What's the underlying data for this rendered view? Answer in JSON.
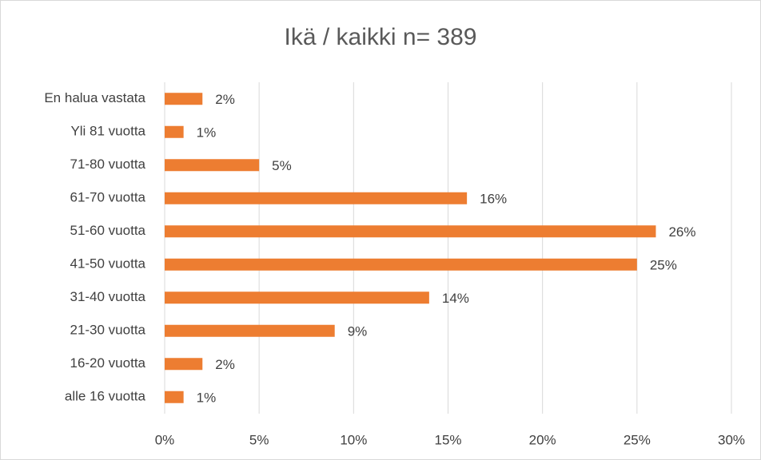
{
  "chart_data": {
    "type": "bar",
    "orientation": "horizontal",
    "title": "Ikä / kaikki n= 389",
    "categories": [
      "En halua vastata",
      "Yli 81 vuotta",
      "71-80 vuotta",
      "61-70 vuotta",
      "51-60 vuotta",
      "41-50 vuotta",
      "31-40 vuotta",
      "21-30 vuotta",
      "16-20 vuotta",
      "alle 16 vuotta"
    ],
    "values": [
      2,
      1,
      5,
      16,
      26,
      25,
      14,
      9,
      2,
      1
    ],
    "value_labels": [
      "2%",
      "1%",
      "5%",
      "16%",
      "26%",
      "25%",
      "14%",
      "9%",
      "2%",
      "1%"
    ],
    "color": "#ed7d31",
    "xlim": [
      0,
      30
    ],
    "xticks": [
      {
        "value": 0,
        "label": "0%"
      },
      {
        "value": 5,
        "label": "5%"
      },
      {
        "value": 10,
        "label": "10%"
      },
      {
        "value": 15,
        "label": "15%"
      },
      {
        "value": 20,
        "label": "20%"
      },
      {
        "value": 25,
        "label": "25%"
      },
      {
        "value": 30,
        "label": "30%"
      }
    ],
    "grid": true
  }
}
